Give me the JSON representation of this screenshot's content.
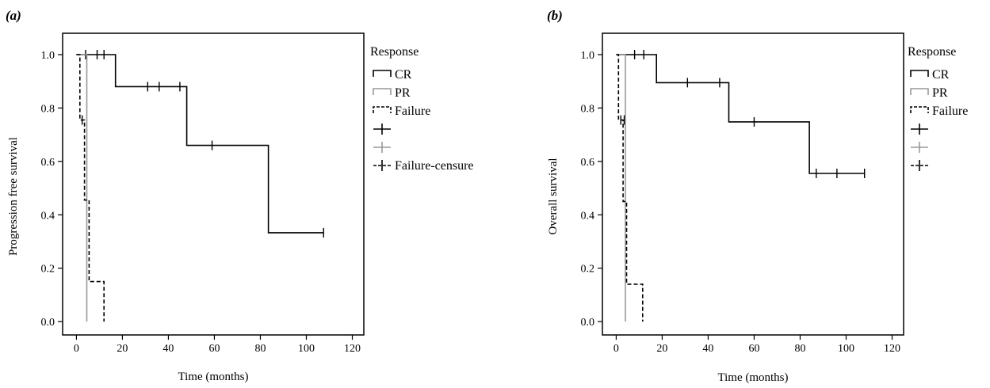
{
  "chart_data": [
    {
      "type": "line",
      "panel_label": "(a)",
      "xlabel": "Time (months)",
      "ylabel": "Progression free survival",
      "xlim": [
        -6,
        125
      ],
      "ylim": [
        -0.05,
        1.08
      ],
      "xticks": [
        0,
        20,
        40,
        60,
        80,
        100,
        120
      ],
      "yticks": [
        "0.0",
        "0.2",
        "0.4",
        "0.6",
        "0.8",
        "1.0"
      ],
      "legend_title": "Response",
      "legend": [
        {
          "label": "CR",
          "color": "#000000",
          "style": "solid",
          "kind": "step"
        },
        {
          "label": "PR",
          "color": "#999999",
          "style": "solid",
          "kind": "step"
        },
        {
          "label": "Failure",
          "color": "#000000",
          "style": "dashed",
          "kind": "step"
        },
        {
          "label": "",
          "color": "#000000",
          "style": "solid",
          "kind": "censor"
        },
        {
          "label": "",
          "color": "#999999",
          "style": "solid",
          "kind": "censor"
        },
        {
          "label": "Failure-censure",
          "color": "#000000",
          "style": "dashed",
          "kind": "censor"
        }
      ],
      "series": [
        {
          "name": "CR",
          "color": "#000000",
          "style": "solid",
          "x": [
            0,
            17,
            17,
            48,
            48,
            83.5,
            83.5,
            107.5
          ],
          "y": [
            1.0,
            1.0,
            0.88,
            0.88,
            0.66,
            0.66,
            0.333,
            0.333
          ],
          "censors": [
            [
              4,
              1.0
            ],
            [
              9,
              1.0
            ],
            [
              12,
              1.0
            ],
            [
              31,
              0.88
            ],
            [
              36,
              0.88
            ],
            [
              45,
              0.88
            ],
            [
              59,
              0.66
            ],
            [
              107.5,
              0.333
            ]
          ]
        },
        {
          "name": "PR",
          "color": "#999999",
          "style": "solid",
          "x": [
            0,
            4.5,
            4.5
          ],
          "y": [
            1.0,
            1.0,
            0.0
          ],
          "censors": []
        },
        {
          "name": "Failure",
          "color": "#000000",
          "style": "dashed",
          "x": [
            0,
            1.5,
            1.5,
            3.5,
            3.5,
            5.5,
            5.5,
            12,
            12
          ],
          "y": [
            1.0,
            1.0,
            0.755,
            0.755,
            0.455,
            0.455,
            0.15,
            0.15,
            0.0
          ],
          "censors": [
            [
              2.5,
              0.755
            ]
          ]
        }
      ]
    },
    {
      "type": "line",
      "panel_label": "(b)",
      "xlabel": "Time (months)",
      "ylabel": "Overall survival",
      "xlim": [
        -6,
        125
      ],
      "ylim": [
        -0.05,
        1.08
      ],
      "xticks": [
        0,
        20,
        40,
        60,
        80,
        100,
        120
      ],
      "yticks": [
        "0.0",
        "0.2",
        "0.4",
        "0.6",
        "0.8",
        "1.0"
      ],
      "legend_title": "Response",
      "legend": [
        {
          "label": "CR",
          "color": "#000000",
          "style": "solid",
          "kind": "step"
        },
        {
          "label": "PR",
          "color": "#999999",
          "style": "solid",
          "kind": "step"
        },
        {
          "label": "Failure",
          "color": "#000000",
          "style": "dashed",
          "kind": "step"
        },
        {
          "label": "",
          "color": "#000000",
          "style": "solid",
          "kind": "censor"
        },
        {
          "label": "",
          "color": "#999999",
          "style": "solid",
          "kind": "censor"
        },
        {
          "label": "",
          "color": "#000000",
          "style": "dashed",
          "kind": "censor"
        }
      ],
      "series": [
        {
          "name": "CR",
          "color": "#000000",
          "style": "solid",
          "x": [
            0,
            17.5,
            17.5,
            49,
            49,
            84,
            84,
            108
          ],
          "y": [
            1.0,
            1.0,
            0.895,
            0.895,
            0.748,
            0.748,
            0.555,
            0.555
          ],
          "censors": [
            [
              8,
              1.0
            ],
            [
              12,
              1.0
            ],
            [
              31,
              0.895
            ],
            [
              45,
              0.895
            ],
            [
              60,
              0.748
            ],
            [
              87,
              0.555
            ],
            [
              96,
              0.555
            ],
            [
              108,
              0.555
            ]
          ]
        },
        {
          "name": "PR",
          "color": "#999999",
          "style": "solid",
          "x": [
            0,
            4,
            4
          ],
          "y": [
            1.0,
            1.0,
            0.0
          ],
          "censors": []
        },
        {
          "name": "Failure",
          "color": "#000000",
          "style": "dashed",
          "x": [
            0,
            1,
            1,
            3,
            3,
            4.5,
            4.5,
            11.5,
            11.5
          ],
          "y": [
            1.0,
            1.0,
            0.755,
            0.755,
            0.45,
            0.45,
            0.14,
            0.14,
            0.0
          ],
          "censors": [
            [
              2,
              0.755
            ],
            [
              3.5,
              0.755
            ]
          ]
        }
      ]
    }
  ]
}
